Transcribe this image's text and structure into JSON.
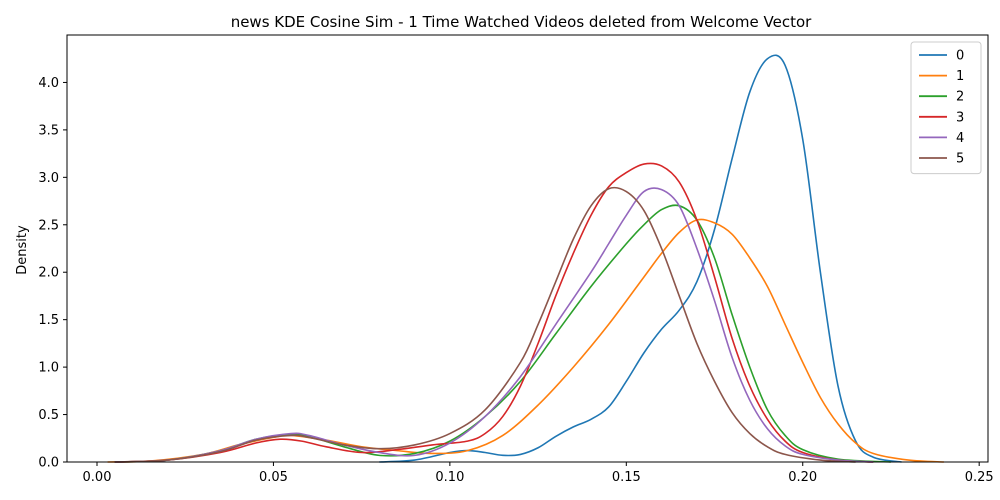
{
  "chart_data": {
    "type": "line",
    "title": "news KDE Cosine Sim - 1 Time Watched Videos deleted from Welcome Vector",
    "xlabel": "",
    "ylabel": "Density",
    "xlim": [
      -0.0085,
      0.2525
    ],
    "ylim": [
      0,
      4.5
    ],
    "x_ticks": [
      0.0,
      0.05,
      0.1,
      0.15,
      0.2,
      0.25
    ],
    "x_tick_labels": [
      "0.00",
      "0.05",
      "0.10",
      "0.15",
      "0.20",
      "0.25"
    ],
    "y_ticks": [
      0.0,
      0.5,
      1.0,
      1.5,
      2.0,
      2.5,
      3.0,
      3.5,
      4.0
    ],
    "y_tick_labels": [
      "0.0",
      "0.5",
      "1.0",
      "1.5",
      "2.0",
      "2.5",
      "3.0",
      "3.5",
      "4.0"
    ],
    "grid": false,
    "legend_position": "top-right",
    "series": [
      {
        "name": "0",
        "color": "#1f77b4",
        "points": [
          [
            0.08,
            0.0
          ],
          [
            0.09,
            0.02
          ],
          [
            0.1,
            0.1
          ],
          [
            0.105,
            0.12
          ],
          [
            0.11,
            0.1
          ],
          [
            0.115,
            0.07
          ],
          [
            0.12,
            0.08
          ],
          [
            0.125,
            0.15
          ],
          [
            0.13,
            0.27
          ],
          [
            0.135,
            0.37
          ],
          [
            0.14,
            0.45
          ],
          [
            0.145,
            0.58
          ],
          [
            0.15,
            0.85
          ],
          [
            0.155,
            1.15
          ],
          [
            0.16,
            1.4
          ],
          [
            0.165,
            1.6
          ],
          [
            0.17,
            1.9
          ],
          [
            0.175,
            2.45
          ],
          [
            0.18,
            3.2
          ],
          [
            0.185,
            3.9
          ],
          [
            0.19,
            4.25
          ],
          [
            0.195,
            4.18
          ],
          [
            0.2,
            3.4
          ],
          [
            0.205,
            2.0
          ],
          [
            0.21,
            0.8
          ],
          [
            0.215,
            0.22
          ],
          [
            0.22,
            0.05
          ],
          [
            0.228,
            0.0
          ]
        ]
      },
      {
        "name": "1",
        "color": "#ff7f0e",
        "points": [
          [
            0.003,
            0.0
          ],
          [
            0.015,
            0.01
          ],
          [
            0.03,
            0.08
          ],
          [
            0.04,
            0.18
          ],
          [
            0.05,
            0.26
          ],
          [
            0.055,
            0.28
          ],
          [
            0.065,
            0.23
          ],
          [
            0.075,
            0.16
          ],
          [
            0.085,
            0.12
          ],
          [
            0.095,
            0.09
          ],
          [
            0.105,
            0.12
          ],
          [
            0.115,
            0.28
          ],
          [
            0.125,
            0.6
          ],
          [
            0.135,
            1.0
          ],
          [
            0.145,
            1.45
          ],
          [
            0.155,
            1.95
          ],
          [
            0.16,
            2.2
          ],
          [
            0.165,
            2.42
          ],
          [
            0.17,
            2.55
          ],
          [
            0.175,
            2.52
          ],
          [
            0.18,
            2.4
          ],
          [
            0.185,
            2.15
          ],
          [
            0.19,
            1.85
          ],
          [
            0.195,
            1.45
          ],
          [
            0.2,
            1.05
          ],
          [
            0.205,
            0.68
          ],
          [
            0.21,
            0.4
          ],
          [
            0.215,
            0.2
          ],
          [
            0.22,
            0.09
          ],
          [
            0.23,
            0.02
          ],
          [
            0.24,
            0.0
          ]
        ]
      },
      {
        "name": "2",
        "color": "#2ca02c",
        "points": [
          [
            0.005,
            0.0
          ],
          [
            0.02,
            0.02
          ],
          [
            0.035,
            0.12
          ],
          [
            0.045,
            0.24
          ],
          [
            0.055,
            0.29
          ],
          [
            0.06,
            0.27
          ],
          [
            0.07,
            0.16
          ],
          [
            0.08,
            0.07
          ],
          [
            0.09,
            0.09
          ],
          [
            0.1,
            0.22
          ],
          [
            0.11,
            0.48
          ],
          [
            0.12,
            0.85
          ],
          [
            0.13,
            1.35
          ],
          [
            0.14,
            1.85
          ],
          [
            0.15,
            2.3
          ],
          [
            0.155,
            2.5
          ],
          [
            0.16,
            2.66
          ],
          [
            0.165,
            2.7
          ],
          [
            0.17,
            2.55
          ],
          [
            0.175,
            2.15
          ],
          [
            0.18,
            1.55
          ],
          [
            0.185,
            1.0
          ],
          [
            0.19,
            0.55
          ],
          [
            0.195,
            0.28
          ],
          [
            0.2,
            0.13
          ],
          [
            0.21,
            0.03
          ],
          [
            0.225,
            0.0
          ]
        ]
      },
      {
        "name": "3",
        "color": "#d62728",
        "points": [
          [
            0.005,
            0.0
          ],
          [
            0.02,
            0.02
          ],
          [
            0.035,
            0.1
          ],
          [
            0.045,
            0.2
          ],
          [
            0.052,
            0.24
          ],
          [
            0.058,
            0.22
          ],
          [
            0.065,
            0.16
          ],
          [
            0.075,
            0.1
          ],
          [
            0.085,
            0.13
          ],
          [
            0.095,
            0.18
          ],
          [
            0.105,
            0.22
          ],
          [
            0.11,
            0.3
          ],
          [
            0.115,
            0.48
          ],
          [
            0.12,
            0.8
          ],
          [
            0.125,
            1.25
          ],
          [
            0.13,
            1.75
          ],
          [
            0.135,
            2.2
          ],
          [
            0.14,
            2.6
          ],
          [
            0.145,
            2.9
          ],
          [
            0.15,
            3.05
          ],
          [
            0.155,
            3.14
          ],
          [
            0.16,
            3.12
          ],
          [
            0.165,
            2.95
          ],
          [
            0.17,
            2.55
          ],
          [
            0.175,
            1.95
          ],
          [
            0.18,
            1.3
          ],
          [
            0.185,
            0.8
          ],
          [
            0.19,
            0.45
          ],
          [
            0.195,
            0.22
          ],
          [
            0.2,
            0.1
          ],
          [
            0.21,
            0.02
          ],
          [
            0.22,
            0.0
          ]
        ]
      },
      {
        "name": "4",
        "color": "#9467bd",
        "points": [
          [
            0.005,
            0.0
          ],
          [
            0.02,
            0.02
          ],
          [
            0.035,
            0.12
          ],
          [
            0.045,
            0.24
          ],
          [
            0.055,
            0.3
          ],
          [
            0.06,
            0.28
          ],
          [
            0.07,
            0.18
          ],
          [
            0.08,
            0.1
          ],
          [
            0.09,
            0.07
          ],
          [
            0.1,
            0.2
          ],
          [
            0.11,
            0.48
          ],
          [
            0.12,
            0.9
          ],
          [
            0.13,
            1.45
          ],
          [
            0.14,
            2.0
          ],
          [
            0.145,
            2.3
          ],
          [
            0.15,
            2.6
          ],
          [
            0.155,
            2.85
          ],
          [
            0.16,
            2.87
          ],
          [
            0.165,
            2.7
          ],
          [
            0.17,
            2.25
          ],
          [
            0.175,
            1.7
          ],
          [
            0.18,
            1.1
          ],
          [
            0.185,
            0.65
          ],
          [
            0.19,
            0.35
          ],
          [
            0.195,
            0.17
          ],
          [
            0.2,
            0.08
          ],
          [
            0.21,
            0.02
          ],
          [
            0.22,
            0.0
          ]
        ]
      },
      {
        "name": "5",
        "color": "#8c564b",
        "points": [
          [
            0.005,
            0.0
          ],
          [
            0.02,
            0.02
          ],
          [
            0.035,
            0.11
          ],
          [
            0.045,
            0.23
          ],
          [
            0.055,
            0.28
          ],
          [
            0.06,
            0.26
          ],
          [
            0.07,
            0.18
          ],
          [
            0.08,
            0.14
          ],
          [
            0.09,
            0.18
          ],
          [
            0.1,
            0.3
          ],
          [
            0.11,
            0.55
          ],
          [
            0.12,
            1.05
          ],
          [
            0.125,
            1.45
          ],
          [
            0.13,
            1.9
          ],
          [
            0.135,
            2.35
          ],
          [
            0.14,
            2.7
          ],
          [
            0.145,
            2.88
          ],
          [
            0.15,
            2.85
          ],
          [
            0.155,
            2.65
          ],
          [
            0.16,
            2.25
          ],
          [
            0.165,
            1.75
          ],
          [
            0.17,
            1.25
          ],
          [
            0.175,
            0.85
          ],
          [
            0.18,
            0.52
          ],
          [
            0.185,
            0.3
          ],
          [
            0.19,
            0.16
          ],
          [
            0.195,
            0.08
          ],
          [
            0.205,
            0.02
          ],
          [
            0.215,
            0.0
          ]
        ]
      }
    ]
  }
}
